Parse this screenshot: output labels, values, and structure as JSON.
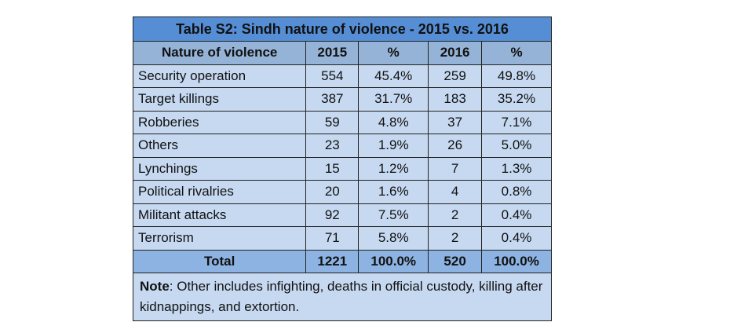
{
  "title": "Table S2: Sindh nature of violence - 2015 vs. 2016",
  "headers": [
    "Nature of violence",
    "2015",
    "%",
    "2016",
    "%"
  ],
  "rows": [
    [
      "Security operation",
      "554",
      "45.4%",
      "259",
      "49.8%"
    ],
    [
      "Target killings",
      "387",
      "31.7%",
      "183",
      "35.2%"
    ],
    [
      "Robberies",
      "59",
      "4.8%",
      "37",
      "7.1%"
    ],
    [
      "Others",
      "23",
      "1.9%",
      "26",
      "5.0%"
    ],
    [
      "Lynchings",
      "15",
      "1.2%",
      "7",
      "1.3%"
    ],
    [
      "Political rivalries",
      "20",
      "1.6%",
      "4",
      "0.8%"
    ],
    [
      "Militant attacks",
      "92",
      "7.5%",
      "2",
      "0.4%"
    ],
    [
      "Terrorism",
      "71",
      "5.8%",
      "2",
      "0.4%"
    ]
  ],
  "total": [
    "Total",
    "1221",
    "100.0%",
    "520",
    "100.0%"
  ],
  "note": {
    "label": "Note",
    "text": ": Other includes infighting, deaths in official custody, killing after kidnappings, and extortion."
  }
}
